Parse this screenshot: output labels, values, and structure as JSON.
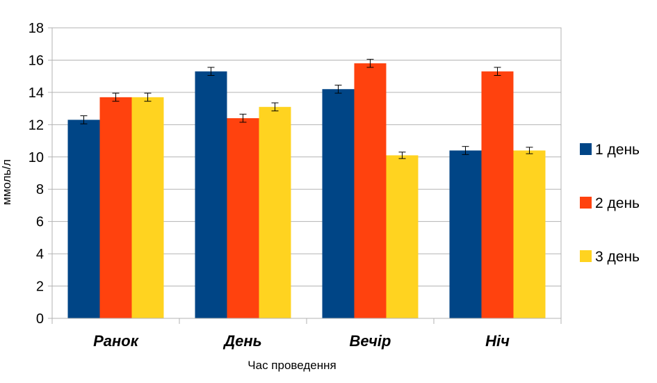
{
  "chart_data": {
    "type": "bar",
    "categories": [
      "Ранок",
      "День",
      "Вечір",
      "Ніч"
    ],
    "series": [
      {
        "name": "1 день",
        "color": "#004586",
        "values": [
          12.3,
          15.3,
          14.2,
          10.4
        ],
        "errors": [
          0.25,
          0.25,
          0.25,
          0.25
        ]
      },
      {
        "name": "2 день",
        "color": "#ff420e",
        "values": [
          13.7,
          12.4,
          15.8,
          15.3
        ],
        "errors": [
          0.25,
          0.25,
          0.25,
          0.25
        ]
      },
      {
        "name": "3 день",
        "color": "#ffd320",
        "values": [
          13.7,
          13.1,
          10.1,
          10.4
        ],
        "errors": [
          0.25,
          0.25,
          0.2,
          0.2
        ]
      }
    ],
    "xlabel": "Час проведення",
    "ylabel": "ммоль/л",
    "ylim": [
      0,
      18
    ],
    "yticks": [
      "0",
      "2",
      "4",
      "6",
      "8",
      "10",
      "12",
      "14",
      "16",
      "18"
    ],
    "grid": true,
    "legend_position": "right"
  }
}
